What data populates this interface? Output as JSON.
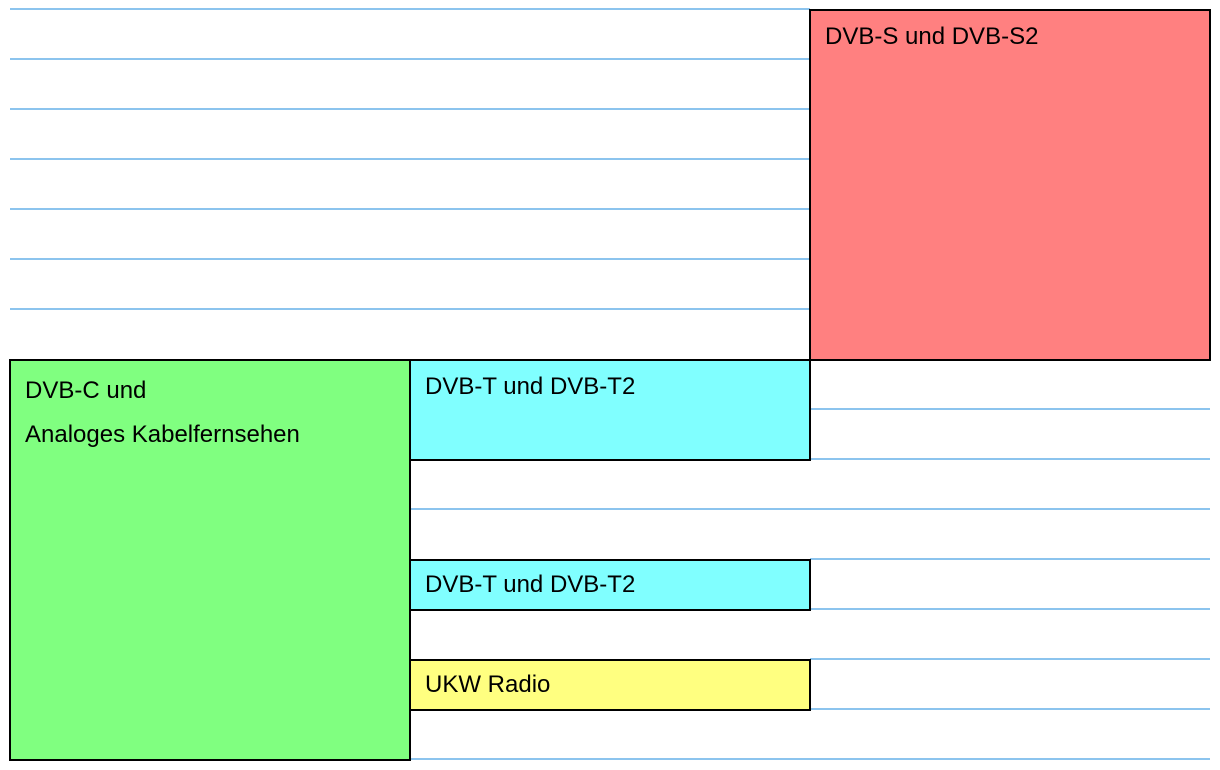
{
  "colors": {
    "gridline": "#8cc4ee",
    "border": "#000000",
    "satellite": "#ff8080",
    "cable": "#80ff80",
    "terrestrial": "#80ffff",
    "radio": "#ffff80"
  },
  "blocks": {
    "satellite": {
      "label": "DVB-S und DVB-S2"
    },
    "cable": {
      "label_line1": "DVB-C und",
      "label_line2": "Analoges Kabelfernsehen"
    },
    "terrestrial_1": {
      "label": "DVB-T und DVB-T2"
    },
    "terrestrial_2": {
      "label": "DVB-T und DVB-T2"
    },
    "radio": {
      "label": "UKW Radio"
    }
  }
}
